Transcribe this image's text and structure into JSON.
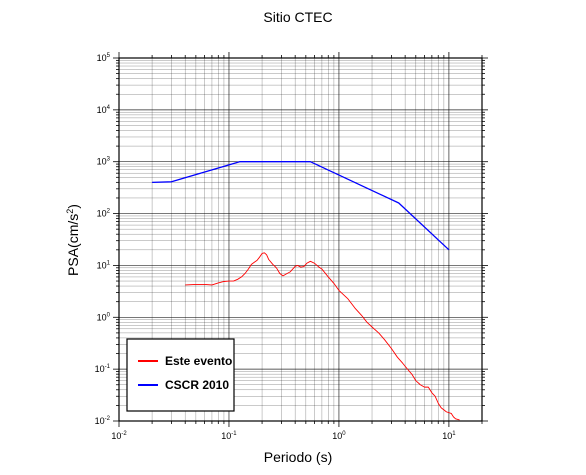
{
  "chart_data": {
    "type": "line",
    "title": "Sitio CTEC",
    "xlabel": "Periodo (s)",
    "ylabel_base": "PSA(cm/s",
    "ylabel_exp": "2",
    "ylabel_close": ")",
    "x_scale": "log",
    "y_scale": "log",
    "xlim": [
      0.01,
      20
    ],
    "ylim": [
      0.01,
      100000
    ],
    "x_major_ticks": [
      0.01,
      0.1,
      1,
      10
    ],
    "y_major_ticks": [
      0.01,
      0.1,
      1,
      10,
      100,
      1000,
      10000,
      100000
    ],
    "x_tick_labels": [
      {
        "base": "10",
        "exp": "-2"
      },
      {
        "base": "10",
        "exp": "-1"
      },
      {
        "base": "10",
        "exp": "0"
      },
      {
        "base": "10",
        "exp": "1"
      }
    ],
    "y_tick_labels": [
      {
        "base": "10",
        "exp": "-2"
      },
      {
        "base": "10",
        "exp": "-1"
      },
      {
        "base": "10",
        "exp": "0"
      },
      {
        "base": "10",
        "exp": "1"
      },
      {
        "base": "10",
        "exp": "2"
      },
      {
        "base": "10",
        "exp": "3"
      },
      {
        "base": "10",
        "exp": "4"
      },
      {
        "base": "10",
        "exp": "5"
      }
    ],
    "grid": true,
    "legend_position": "bottom-left",
    "series": [
      {
        "name": "Este evento",
        "color": "#ff0000",
        "points": [
          [
            0.04,
            4.2
          ],
          [
            0.05,
            4.3
          ],
          [
            0.06,
            4.3
          ],
          [
            0.07,
            4.2
          ],
          [
            0.08,
            4.6
          ],
          [
            0.09,
            4.9
          ],
          [
            0.1,
            5.0
          ],
          [
            0.11,
            5.0
          ],
          [
            0.12,
            5.4
          ],
          [
            0.13,
            6.0
          ],
          [
            0.14,
            7.0
          ],
          [
            0.15,
            8.5
          ],
          [
            0.16,
            10.5
          ],
          [
            0.17,
            11.5
          ],
          [
            0.18,
            12.5
          ],
          [
            0.19,
            14.5
          ],
          [
            0.2,
            17.0
          ],
          [
            0.21,
            17.5
          ],
          [
            0.22,
            16.0
          ],
          [
            0.23,
            13.0
          ],
          [
            0.25,
            10.5
          ],
          [
            0.27,
            9.0
          ],
          [
            0.29,
            7.0
          ],
          [
            0.31,
            6.3
          ],
          [
            0.33,
            6.8
          ],
          [
            0.36,
            7.5
          ],
          [
            0.38,
            8.5
          ],
          [
            0.4,
            9.6
          ],
          [
            0.42,
            10.0
          ],
          [
            0.45,
            9.3
          ],
          [
            0.48,
            9.5
          ],
          [
            0.51,
            11.0
          ],
          [
            0.55,
            12.0
          ],
          [
            0.6,
            11.0
          ],
          [
            0.65,
            9.5
          ],
          [
            0.7,
            8.5
          ],
          [
            0.8,
            6.0
          ],
          [
            0.9,
            4.5
          ],
          [
            1.0,
            3.3
          ],
          [
            1.2,
            2.3
          ],
          [
            1.4,
            1.5
          ],
          [
            1.6,
            1.1
          ],
          [
            1.8,
            0.8
          ],
          [
            2.0,
            0.65
          ],
          [
            2.3,
            0.5
          ],
          [
            2.6,
            0.37
          ],
          [
            3.0,
            0.25
          ],
          [
            3.4,
            0.17
          ],
          [
            3.8,
            0.13
          ],
          [
            4.2,
            0.1
          ],
          [
            4.6,
            0.08
          ],
          [
            5.0,
            0.06
          ],
          [
            5.5,
            0.05
          ],
          [
            6.0,
            0.045
          ],
          [
            6.5,
            0.045
          ],
          [
            7.0,
            0.035
          ],
          [
            7.5,
            0.03
          ],
          [
            8.0,
            0.022
          ],
          [
            8.5,
            0.018
          ],
          [
            9.5,
            0.015
          ],
          [
            10.5,
            0.014
          ],
          [
            11.0,
            0.012
          ],
          [
            11.5,
            0.011
          ],
          [
            12.5,
            0.0105
          ]
        ]
      },
      {
        "name": "CSCR 2010",
        "color": "#0000ff",
        "points": [
          [
            0.02,
            400
          ],
          [
            0.03,
            410
          ],
          [
            0.125,
            1000
          ],
          [
            0.55,
            1000
          ],
          [
            3.5,
            160
          ],
          [
            10,
            20
          ]
        ]
      }
    ]
  }
}
